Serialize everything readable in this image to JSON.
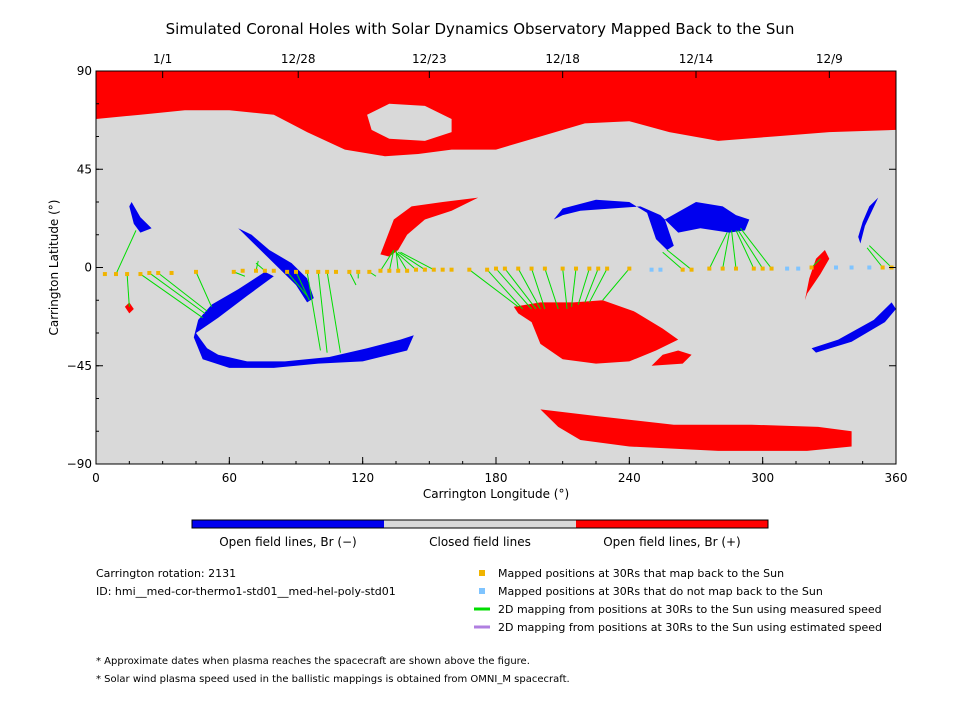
{
  "chart_data": {
    "type": "scatter",
    "title": "Simulated Coronal Holes with Solar Dynamics Observatory Mapped Back to the Sun",
    "xlabel": "Carrington Longitude (°)",
    "ylabel": "Carrington Latitude (°)",
    "xlim": [
      0,
      360
    ],
    "ylim": [
      -90,
      90
    ],
    "x_ticks": [
      "0",
      "60",
      "120",
      "180",
      "240",
      "300",
      "360"
    ],
    "y_ticks": [
      "90",
      "45",
      "0",
      "−45",
      "−90"
    ],
    "top_axis_dates": [
      {
        "label": "1/1",
        "lon": 30
      },
      {
        "label": "12/28",
        "lon": 91
      },
      {
        "label": "12/23",
        "lon": 150
      },
      {
        "label": "12/18",
        "lon": 210
      },
      {
        "label": "12/14",
        "lon": 270
      },
      {
        "label": "12/9",
        "lon": 330
      }
    ],
    "colors": {
      "closed": "#d9d9d9",
      "open_neg": "#0000ee",
      "open_pos": "#ff0000",
      "mapped": "#f0b400",
      "unmapped": "#7fc4ff",
      "measured_line": "#00dd00",
      "estimated_line": "#b07fe0"
    },
    "series": [
      {
        "name": "Mapped positions at 30Rs that map back to the Sun",
        "points": [
          [
            4,
            -3
          ],
          [
            9,
            -3
          ],
          [
            14,
            -3
          ],
          [
            20,
            -3
          ],
          [
            24,
            -2.5
          ],
          [
            28,
            -2.5
          ],
          [
            34,
            -2.5
          ],
          [
            45,
            -2
          ],
          [
            62,
            -2
          ],
          [
            66,
            -1.5
          ],
          [
            72,
            -1.5
          ],
          [
            76,
            -1.5
          ],
          [
            80,
            -1.5
          ],
          [
            86,
            -2
          ],
          [
            90,
            -2
          ],
          [
            95,
            -2
          ],
          [
            100,
            -2
          ],
          [
            104,
            -2
          ],
          [
            108,
            -2
          ],
          [
            114,
            -2
          ],
          [
            118,
            -2
          ],
          [
            123,
            -2
          ],
          [
            128,
            -1.5
          ],
          [
            132,
            -1.5
          ],
          [
            136,
            -1.5
          ],
          [
            140,
            -1.5
          ],
          [
            144,
            -1
          ],
          [
            148,
            -1
          ],
          [
            152,
            -1
          ],
          [
            156,
            -1
          ],
          [
            160,
            -1
          ],
          [
            168,
            -1
          ],
          [
            176,
            -1
          ],
          [
            180,
            -0.5
          ],
          [
            184,
            -0.5
          ],
          [
            190,
            -0.5
          ],
          [
            196,
            -0.5
          ],
          [
            202,
            -0.5
          ],
          [
            210,
            -0.5
          ],
          [
            216,
            -0.5
          ],
          [
            222,
            -0.5
          ],
          [
            226,
            -0.5
          ],
          [
            230,
            -0.5
          ],
          [
            240,
            -0.5
          ],
          [
            264,
            -1
          ],
          [
            268,
            -1
          ],
          [
            276,
            -0.5
          ],
          [
            282,
            -0.5
          ],
          [
            288,
            -0.5
          ],
          [
            296,
            -0.5
          ],
          [
            300,
            -0.5
          ],
          [
            304,
            -0.5
          ],
          [
            322,
            0
          ],
          [
            354,
            0
          ],
          [
            358,
            0
          ]
        ]
      },
      {
        "name": "Mapped positions at 30Rs that do not map back to the Sun",
        "points": [
          [
            250,
            -1
          ],
          [
            254,
            -1
          ],
          [
            311,
            -0.5
          ],
          [
            316,
            -0.5
          ],
          [
            333,
            0
          ],
          [
            340,
            0
          ],
          [
            348,
            0
          ]
        ]
      }
    ],
    "mapping_lines_measured": [
      [
        [
          9,
          -3
        ],
        [
          18,
          17
        ]
      ],
      [
        [
          14,
          -3
        ],
        [
          15,
          -18
        ]
      ],
      [
        [
          20,
          -3
        ],
        [
          48,
          -23
        ]
      ],
      [
        [
          24,
          -2.5
        ],
        [
          49,
          -21
        ]
      ],
      [
        [
          28,
          -2.5
        ],
        [
          50,
          -20
        ]
      ],
      [
        [
          45,
          -2
        ],
        [
          52,
          -18
        ]
      ],
      [
        [
          62,
          -2
        ],
        [
          67,
          -4
        ]
      ],
      [
        [
          72,
          -1.5
        ],
        [
          73,
          3
        ]
      ],
      [
        [
          76,
          -1.5
        ],
        [
          72,
          2
        ]
      ],
      [
        [
          86,
          -2
        ],
        [
          95,
          -13
        ]
      ],
      [
        [
          90,
          -2
        ],
        [
          96,
          -15
        ]
      ],
      [
        [
          95,
          -2
        ],
        [
          101,
          -38
        ]
      ],
      [
        [
          100,
          -2
        ],
        [
          104,
          -39
        ]
      ],
      [
        [
          104,
          -2
        ],
        [
          110,
          -39
        ]
      ],
      [
        [
          114,
          -2
        ],
        [
          117,
          -8
        ]
      ],
      [
        [
          118,
          -2
        ],
        [
          118,
          -5
        ]
      ],
      [
        [
          123,
          -2
        ],
        [
          126,
          -4
        ]
      ],
      [
        [
          128,
          -1.5
        ],
        [
          134,
          8
        ]
      ],
      [
        [
          132,
          -1.5
        ],
        [
          134,
          8
        ]
      ],
      [
        [
          136,
          -1.5
        ],
        [
          135,
          8
        ]
      ],
      [
        [
          140,
          -1.5
        ],
        [
          135,
          7
        ]
      ],
      [
        [
          144,
          -1
        ],
        [
          135,
          7
        ]
      ],
      [
        [
          148,
          -1
        ],
        [
          136,
          7
        ]
      ],
      [
        [
          152,
          -1
        ],
        [
          137,
          7
        ]
      ],
      [
        [
          168,
          -1
        ],
        [
          190,
          -18
        ]
      ],
      [
        [
          176,
          -1
        ],
        [
          192,
          -19
        ]
      ],
      [
        [
          180,
          -0.5
        ],
        [
          196,
          -19
        ]
      ],
      [
        [
          184,
          -0.5
        ],
        [
          198,
          -19
        ]
      ],
      [
        [
          190,
          -0.5
        ],
        [
          200,
          -19
        ]
      ],
      [
        [
          196,
          -0.5
        ],
        [
          202,
          -19
        ]
      ],
      [
        [
          202,
          -0.5
        ],
        [
          208,
          -19
        ]
      ],
      [
        [
          210,
          -0.5
        ],
        [
          212,
          -19
        ]
      ],
      [
        [
          216,
          -0.5
        ],
        [
          214,
          -18
        ]
      ],
      [
        [
          222,
          -0.5
        ],
        [
          217,
          -17
        ]
      ],
      [
        [
          226,
          -0.5
        ],
        [
          220,
          -16
        ]
      ],
      [
        [
          230,
          -0.5
        ],
        [
          222,
          -16
        ]
      ],
      [
        [
          240,
          -0.5
        ],
        [
          228,
          -15
        ]
      ],
      [
        [
          264,
          -1
        ],
        [
          255,
          7
        ]
      ],
      [
        [
          268,
          -1
        ],
        [
          257,
          8
        ]
      ],
      [
        [
          276,
          -0.5
        ],
        [
          284,
          16
        ]
      ],
      [
        [
          282,
          -0.5
        ],
        [
          285,
          16
        ]
      ],
      [
        [
          288,
          -0.5
        ],
        [
          286,
          17
        ]
      ],
      [
        [
          296,
          -0.5
        ],
        [
          288,
          17
        ]
      ],
      [
        [
          300,
          -0.5
        ],
        [
          289,
          17
        ]
      ],
      [
        [
          304,
          -0.5
        ],
        [
          290,
          18
        ]
      ],
      [
        [
          322,
          0
        ],
        [
          326,
          4
        ]
      ],
      [
        [
          354,
          0
        ],
        [
          347,
          9
        ]
      ],
      [
        [
          358,
          0
        ],
        [
          348,
          10
        ]
      ]
    ],
    "colorbar": [
      {
        "label": "Open field lines, Br (−)",
        "color": "#0000ee"
      },
      {
        "label": "Closed field lines",
        "color": "#d9d9d9"
      },
      {
        "label": "Open field lines, Br (+)",
        "color": "#ff0000"
      }
    ],
    "legend": [
      {
        "label": "Mapped positions at 30Rs that map back to the Sun",
        "marker": "square",
        "color": "#f0b400"
      },
      {
        "label": "Mapped positions at 30Rs that do not map back to the Sun",
        "marker": "square",
        "color": "#7fc4ff"
      },
      {
        "label": "2D mapping from positions at 30Rs to the Sun using measured speed",
        "marker": "line",
        "color": "#00dd00"
      },
      {
        "label": "2D mapping from positions at 30Rs to the Sun using estimated speed",
        "marker": "line",
        "color": "#b07fe0"
      }
    ],
    "grid": false
  },
  "info": {
    "rotation": "Carrington rotation: 2131",
    "id": "ID: hmi__med-cor-thermo1-std01__med-hel-poly-std01"
  },
  "notes": [
    "* Approximate dates when plasma reaches the spacecraft are shown above the figure.",
    "* Solar wind plasma speed used in the ballistic mappings is obtained from OMNI_M spacecraft."
  ]
}
